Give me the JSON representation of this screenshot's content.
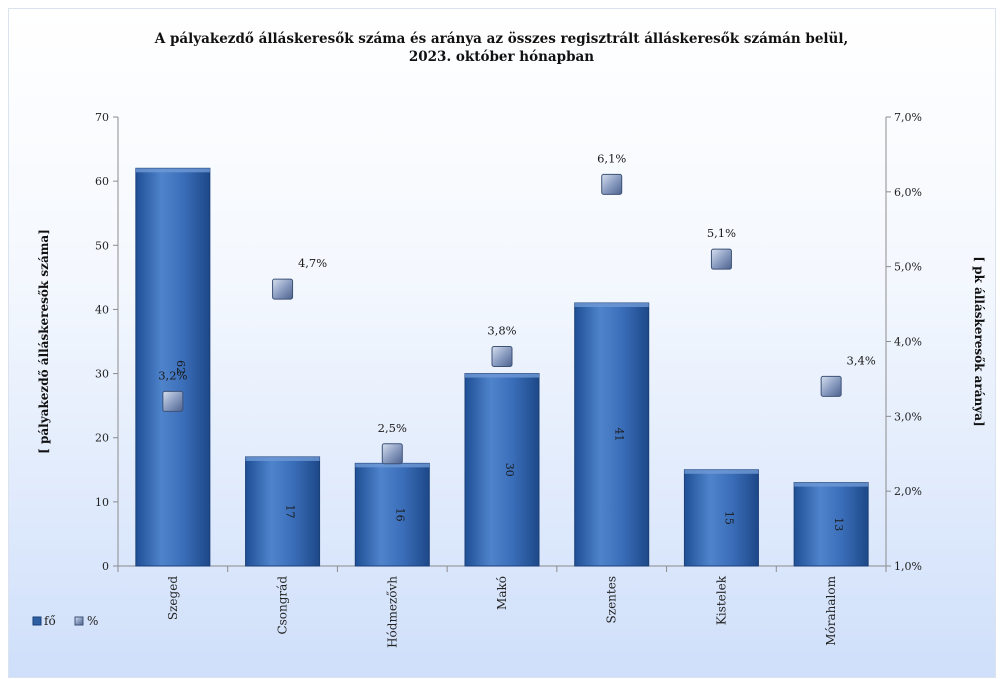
{
  "chart_data": {
    "type": "bar",
    "title_lines": [
      "A pályakezdő álláskeresők száma és aránya az összes regisztrált álláskeresők számán belül,",
      "2023. október hónapban"
    ],
    "categories": [
      "Szeged",
      "Csongrád",
      "Hódmezővh",
      "Makó",
      "Szentes",
      "Kistelek",
      "Mórahalom"
    ],
    "series": [
      {
        "name": "fő",
        "type": "bar",
        "axis": "left",
        "values": [
          62,
          17,
          16,
          30,
          41,
          15,
          13
        ],
        "labels": [
          "62",
          "17",
          "16",
          "30",
          "41",
          "15",
          "13"
        ]
      },
      {
        "name": "%",
        "type": "marker",
        "axis": "right",
        "values": [
          3.2,
          4.7,
          2.5,
          3.8,
          6.1,
          5.1,
          3.4
        ],
        "labels": [
          "3,2%",
          "4,7%",
          "2,5%",
          "3,8%",
          "6,1%",
          "5,1%",
          "3,4%"
        ]
      }
    ],
    "ylabel": "[ pályakezdő álláskeresők száma]",
    "y2label": "[ pk álláskeresők aránya]",
    "ylim": [
      0,
      70
    ],
    "y2lim": [
      1.0,
      7.0
    ],
    "yticks": [
      "0",
      "10",
      "20",
      "30",
      "40",
      "50",
      "60",
      "70"
    ],
    "y2ticks": [
      "1,0%",
      "2,0%",
      "3,0%",
      "4,0%",
      "5,0%",
      "6,0%",
      "7,0%"
    ],
    "legend_position": "bottom-left",
    "grid": false
  },
  "colors": {
    "bar": "#2e5fa3",
    "bar_light": "#5d8fd1",
    "marker": "#7a8fb8"
  }
}
